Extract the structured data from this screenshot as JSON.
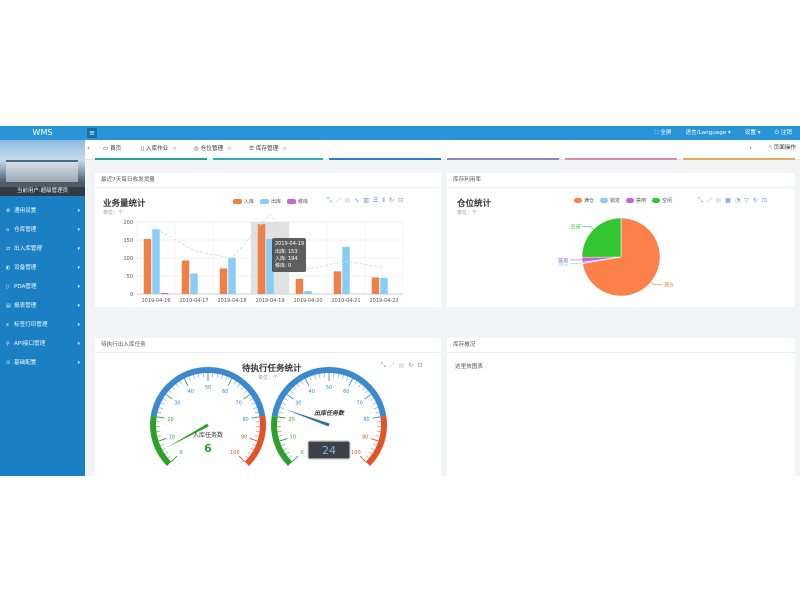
{
  "app": {
    "title": "WMS",
    "user_label": "当前用户:超级管理员"
  },
  "sidebar": {
    "items": [
      {
        "label": "通用设置",
        "icon": "gear-icon"
      },
      {
        "label": "仓库管理",
        "icon": "home-icon"
      },
      {
        "label": "出入库管理",
        "icon": "inout-icon"
      },
      {
        "label": "设备管理",
        "icon": "device-icon"
      },
      {
        "label": "PDA管理",
        "icon": "pda-icon"
      },
      {
        "label": "报表管理",
        "icon": "report-icon"
      },
      {
        "label": "标签打印管理",
        "icon": "print-icon"
      },
      {
        "label": "API接口管理",
        "icon": "api-icon"
      },
      {
        "label": "基础配置",
        "icon": "config-icon"
      }
    ]
  },
  "topbar": {
    "fullscreen": "全屏",
    "language": "语言/Language",
    "settings": "设置",
    "logout": "注销"
  },
  "tabs": {
    "items": [
      {
        "label": "首页",
        "closable": false
      },
      {
        "label": "入库作业",
        "closable": true
      },
      {
        "label": "仓位管理",
        "closable": true
      },
      {
        "label": "库存管理",
        "closable": true
      }
    ],
    "page_ops": "页面操作",
    "underline_colors": [
      "#1ea58c",
      "#26b0b8",
      "#2a7fd0",
      "#8b86c6",
      "#e08aa6",
      "#e8ab5c"
    ]
  },
  "panels": {
    "weekly": {
      "header": "最近7天每日收发货量",
      "title": "业务量统计",
      "subtitle": "单位：个"
    },
    "location": {
      "header": "库存利用率",
      "title": "仓位统计",
      "subtitle": "单位：个"
    },
    "tasks": {
      "header": "待执行出入库任务",
      "title": "待执行任务统计",
      "subtitle": "单位：个"
    },
    "inventory": {
      "header": "库存概况",
      "body_text": "这里放图表"
    }
  },
  "chart_data": [
    {
      "type": "bar",
      "categories": [
        "2019-04-16",
        "2019-04-17",
        "2019-04-18",
        "2019-04-19",
        "2019-04-20",
        "2019-04-21",
        "2019-04-22"
      ],
      "series": [
        {
          "name": "入库",
          "values": [
            153,
            93,
            71,
            194,
            42,
            63,
            46
          ],
          "color": "#f0804a"
        },
        {
          "name": "出库",
          "values": [
            180,
            57,
            101,
            153,
            8,
            131,
            45
          ],
          "color": "#87cdf6"
        },
        {
          "name": "移库",
          "values": [
            3,
            0,
            0,
            0,
            0,
            0,
            0
          ],
          "color": "#c566d2"
        }
      ],
      "yticks": [
        0,
        50,
        100,
        150,
        200
      ],
      "ylim": [
        0,
        200
      ],
      "tooltip": {
        "date": "2019-04-19",
        "rows": [
          {
            "name": "出库",
            "value": "153"
          },
          {
            "name": "入库",
            "value": "194"
          },
          {
            "name": "移库",
            "value": "0"
          }
        ]
      }
    },
    {
      "type": "pie",
      "series": [
        {
          "name": "满仓",
          "value": 72,
          "color": "#fb8049"
        },
        {
          "name": "锁定",
          "value": 0.6,
          "color": "#88cdf6"
        },
        {
          "name": "禁用",
          "value": 2,
          "color": "#c465d3"
        },
        {
          "name": "空闲",
          "value": 25,
          "color": "#34c631"
        }
      ]
    },
    {
      "type": "gauge",
      "gauges": [
        {
          "name": "入库任务数",
          "value": 6,
          "min": 0,
          "max": 100,
          "ticks": [
            0,
            10,
            20,
            30,
            40,
            50,
            60,
            70,
            80,
            90,
            100
          ]
        },
        {
          "name": "出库任务数",
          "value": 24,
          "min": 0,
          "max": 100,
          "ticks": [
            0,
            10,
            20,
            30,
            40,
            50,
            60,
            70,
            80,
            90,
            100
          ]
        }
      ],
      "band_colors": [
        "#2ea02a",
        "#3b8ad0",
        "#e2532a"
      ]
    }
  ]
}
